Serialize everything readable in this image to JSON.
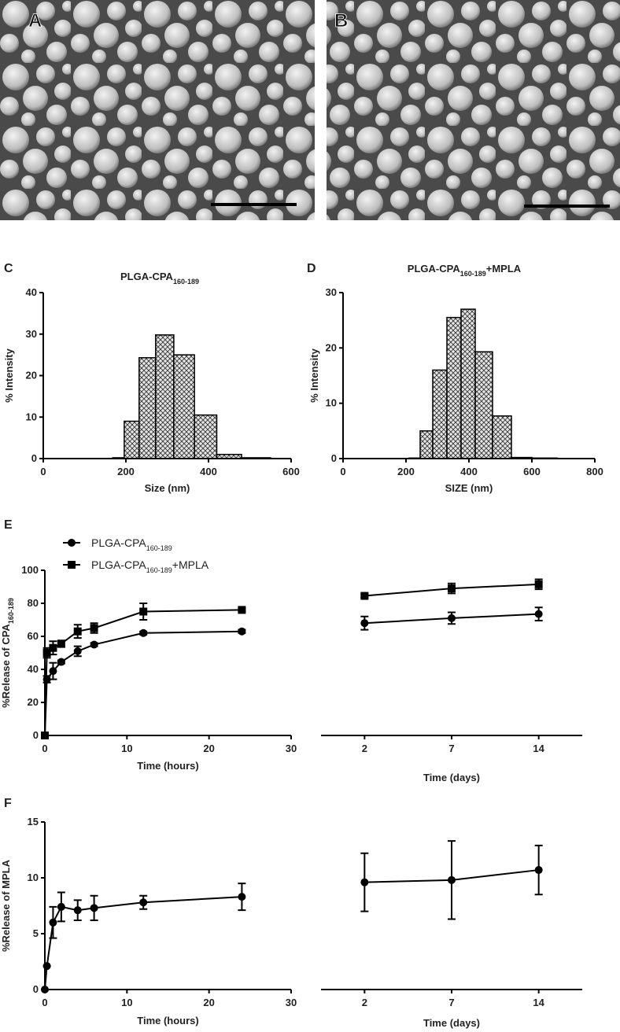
{
  "images": [
    {
      "label": "A"
    },
    {
      "label": "B"
    }
  ],
  "chart_data": [
    {
      "type": "histogram",
      "panel_label": "C",
      "title": "PLGA-CPA",
      "title_sub": "160-189",
      "xlabel": "Size (nm)",
      "ylabel": "% Intensity",
      "bins": [
        168,
        196,
        232,
        272,
        316,
        366,
        420,
        480,
        550
      ],
      "counts": [
        0.2,
        9,
        24.3,
        29.8,
        25,
        10.5,
        1,
        0.2
      ],
      "xlim": [
        0,
        600
      ],
      "xticks": [
        0,
        200,
        400,
        600
      ],
      "ylim": [
        0,
        40
      ],
      "yticks": [
        0,
        10,
        20,
        30,
        40
      ]
    },
    {
      "type": "histogram",
      "panel_label": "D",
      "title": "PLGA-CPA",
      "title_sub": "160-189",
      "title_suffix": "+MPLA",
      "xlabel": "SIZE (nm)",
      "ylabel": "% Intensity",
      "bins": [
        210,
        245,
        285,
        330,
        375,
        420,
        475,
        535,
        600,
        680
      ],
      "counts": [
        0.1,
        5,
        16,
        25.5,
        27,
        19.3,
        7.7,
        0.2,
        0.1
      ],
      "xlim": [
        0,
        800
      ],
      "xticks": [
        0,
        200,
        400,
        600,
        800
      ],
      "ylim": [
        0,
        30
      ],
      "yticks": [
        0,
        10,
        20,
        30
      ]
    },
    {
      "type": "line",
      "panel_label": "E",
      "ylabel": "%Release of CPA",
      "ylabel_sub": "160-189",
      "xlabel": "Time (hours)",
      "xlabel2": "Time (days)",
      "x": [
        0,
        0.25,
        1,
        2,
        4,
        6,
        12,
        24
      ],
      "xlim": [
        0,
        30
      ],
      "xticks": [
        0,
        10,
        20,
        30
      ],
      "categories": [
        "2",
        "7",
        "14"
      ],
      "ylim": [
        0,
        100
      ],
      "yticks": [
        0,
        20,
        40,
        60,
        80,
        100
      ],
      "series": [
        {
          "name": "PLGA-CPA",
          "name_sub": "160-189",
          "marker": "circle",
          "color": "#000000",
          "values": [
            0,
            34,
            39,
            44.5,
            51,
            55,
            62,
            63
          ],
          "errors": [
            0,
            2,
            5,
            1,
            3,
            1,
            1,
            1
          ],
          "values2": [
            68,
            71,
            73.5
          ],
          "errors2": [
            4,
            3.5,
            4
          ]
        },
        {
          "name": "PLGA-CPA",
          "name_sub": "160-189",
          "name_suffix": "+MPLA",
          "marker": "square",
          "color": "#000000",
          "values": [
            0,
            50,
            53,
            55.5,
            63,
            65,
            75,
            76
          ],
          "errors": [
            0,
            3,
            4,
            2,
            4,
            3,
            5,
            1
          ],
          "values2": [
            84.5,
            89,
            91.5
          ],
          "errors2": [
            1,
            3,
            3
          ]
        }
      ]
    },
    {
      "type": "line",
      "panel_label": "F",
      "ylabel": "%Release of MPLA",
      "xlabel": "Time (hours)",
      "xlabel2": "Time (days)",
      "x": [
        0,
        0.25,
        1,
        2,
        4,
        6,
        12,
        24
      ],
      "xlim": [
        0,
        30
      ],
      "xticks": [
        0,
        10,
        20,
        30
      ],
      "categories": [
        "2",
        "7",
        "14"
      ],
      "ylim": [
        0,
        15
      ],
      "yticks": [
        0,
        5,
        10,
        15
      ],
      "series": [
        {
          "marker": "circle",
          "color": "#000000",
          "values": [
            0,
            2.1,
            6,
            7.4,
            7.1,
            7.3,
            7.8,
            8.3
          ],
          "errors": [
            0,
            0,
            1.4,
            1.3,
            0.9,
            1.1,
            0.6,
            1.2
          ],
          "values2": [
            9.6,
            9.8,
            10.7
          ],
          "errors2": [
            2.6,
            3.5,
            2.2
          ]
        }
      ]
    }
  ]
}
